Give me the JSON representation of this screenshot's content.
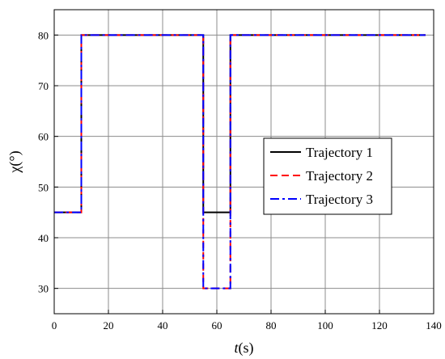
{
  "chart_data": {
    "type": "line",
    "xlabel": "t(s)",
    "ylabel": "χ(°)",
    "xlim": [
      0,
      140
    ],
    "ylim": [
      25,
      85
    ],
    "xticks": [
      0,
      20,
      40,
      60,
      80,
      100,
      120,
      140
    ],
    "yticks": [
      30,
      40,
      50,
      60,
      70,
      80
    ],
    "xtick_labels": [
      "0",
      "20",
      "40",
      "60",
      "80",
      "100",
      "120",
      "140"
    ],
    "ytick_labels": [
      "30",
      "40",
      "50",
      "60",
      "70",
      "80"
    ],
    "grid": true,
    "legend_position": "center-right",
    "series": [
      {
        "name": "Trajectory 1",
        "color": "#000000",
        "style": "solid",
        "x": [
          0,
          10,
          10,
          55,
          55,
          65,
          65,
          137
        ],
        "y": [
          45,
          45,
          80,
          80,
          45,
          45,
          80,
          80
        ]
      },
      {
        "name": "Trajectory 2",
        "color": "#ff0000",
        "style": "dash",
        "x": [
          0,
          10,
          10,
          55,
          55,
          65,
          65,
          137
        ],
        "y": [
          45,
          45,
          80,
          80,
          30,
          30,
          80,
          80
        ]
      },
      {
        "name": "Trajectory 3",
        "color": "#0000ff",
        "style": "dashdot",
        "x": [
          0,
          10,
          10,
          55,
          55,
          65,
          65,
          137
        ],
        "y": [
          45,
          45,
          80,
          80,
          30,
          30,
          80,
          80
        ]
      }
    ]
  }
}
